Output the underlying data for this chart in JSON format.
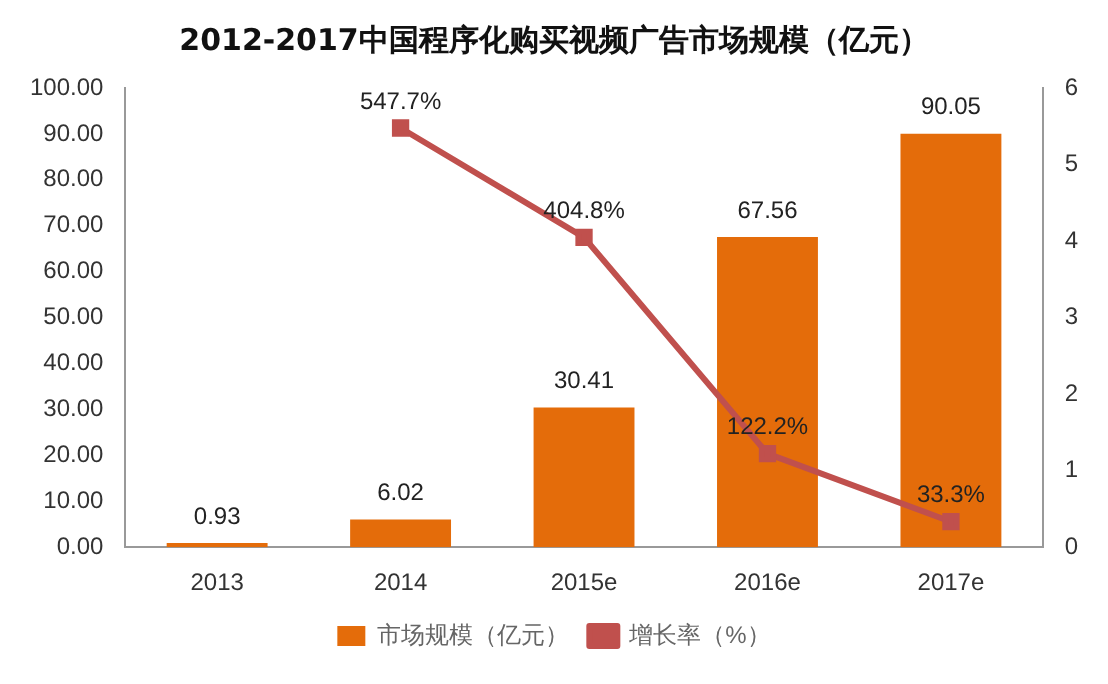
{
  "chart_data": {
    "type": "bar",
    "title": "2012-2017中国程序化购买视频广告市场规模（亿元）",
    "categories": [
      "2013",
      "2014",
      "2015e",
      "2016e",
      "2017e"
    ],
    "series": [
      {
        "name": "市场规模（亿元）",
        "color": "#e46c0a",
        "values": [
          0.93,
          6.02,
          30.41,
          67.56,
          90.05
        ],
        "value_labels": [
          "0.93",
          "6.02",
          "30.41",
          "67.56",
          "90.05"
        ]
      },
      {
        "name": "增长率（%）",
        "type": "line",
        "axis": "y2",
        "color": "#c0504d",
        "marker": "square",
        "values": [
          null,
          5.477,
          4.048,
          1.222,
          0.333
        ],
        "value_labels": [
          null,
          "547.7%",
          "404.8%",
          "122.2%",
          "33.3%"
        ]
      }
    ],
    "ylim": [
      0,
      100
    ],
    "yticks": [
      {
        "value": 0,
        "label": "0.00"
      },
      {
        "value": 10,
        "label": "10.00"
      },
      {
        "value": 20,
        "label": "20.00"
      },
      {
        "value": 30,
        "label": "30.00"
      },
      {
        "value": 40,
        "label": "40.00"
      },
      {
        "value": 50,
        "label": "50.00"
      },
      {
        "value": 60,
        "label": "60.00"
      },
      {
        "value": 70,
        "label": "70.00"
      },
      {
        "value": 80,
        "label": "80.00"
      },
      {
        "value": 90,
        "label": "90.00"
      },
      {
        "value": 100,
        "label": "100.00"
      }
    ],
    "y2lim": [
      0,
      6
    ],
    "y2ticks": [
      0,
      1,
      2,
      3,
      4,
      5,
      6
    ],
    "legend": "bottom"
  }
}
